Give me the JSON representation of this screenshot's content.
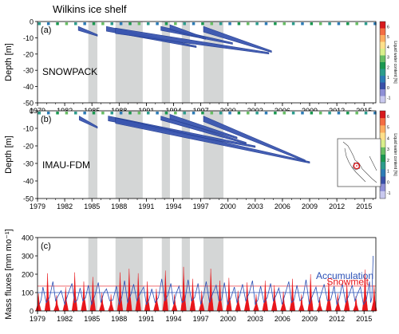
{
  "figure": {
    "title": "Wilkins ice shelf"
  },
  "colorbar": {
    "label": "Liquid water content [%]",
    "ticks": [
      "6",
      "5",
      "4",
      "3",
      "2",
      "1",
      "0",
      "-1"
    ],
    "colors": [
      "#d7191c",
      "#f46d43",
      "#fdae61",
      "#fee08b",
      "#d9ef8b",
      "#66bd63",
      "#1a9850",
      "#2b9c8c",
      "#2c7bb6",
      "#3950a8",
      "#8e8fd6",
      "#c9c9ef"
    ]
  },
  "colors": {
    "shade": "#d4d6d6",
    "blue_fill": "#3a56b0",
    "blue_edge": "#1f3a8f",
    "accumulation": "#2a4fb5",
    "snowmelt": "#e8161b",
    "map_marker": "#e8161b"
  },
  "chart_data": [
    {
      "type": "area",
      "panel_label": "(a)",
      "model_label": "SNOWPACK",
      "ylabel": "Depth [m]",
      "xlim": [
        1979,
        2016.3
      ],
      "ylim": [
        -50,
        0
      ],
      "xticks": [
        1979,
        1982,
        1985,
        1988,
        1991,
        1994,
        1997,
        2000,
        2003,
        2006,
        2009,
        2012,
        2015
      ],
      "yticks": [
        0,
        -10,
        -20,
        -30,
        -40,
        -50
      ],
      "shaded_periods": [
        [
          1984.6,
          1985.6
        ],
        [
          1987.6,
          1990.6
        ],
        [
          1992.7,
          1993.6
        ],
        [
          1994.9,
          1995.8
        ],
        [
          1997.3,
          1999.5
        ]
      ],
      "percolation_bands": [
        {
          "start": 1983.5,
          "end": 1985.6,
          "depth_start": -3,
          "depth_end": -8
        },
        {
          "start": 1986.6,
          "end": 1996.5,
          "depth_start": -3,
          "depth_end": -15
        },
        {
          "start": 1987.6,
          "end": 2004.5,
          "depth_start": -4,
          "depth_end": -19
        },
        {
          "start": 1992.6,
          "end": 2000.5,
          "depth_start": -3,
          "depth_end": -13
        },
        {
          "start": 1993.6,
          "end": 1997.5,
          "depth_start": -2,
          "depth_end": -10
        },
        {
          "start": 1997.3,
          "end": 2004.8,
          "depth_start": -3,
          "depth_end": -18
        }
      ]
    },
    {
      "type": "area",
      "panel_label": "(b)",
      "model_label": "IMAU-FDM",
      "ylabel": "Depth [m]",
      "xlim": [
        1979,
        2016.3
      ],
      "ylim": [
        -50,
        0
      ],
      "xticks": [
        1979,
        1982,
        1985,
        1988,
        1991,
        1994,
        1997,
        2000,
        2003,
        2006,
        2009,
        2012,
        2015
      ],
      "yticks": [
        0,
        -10,
        -20,
        -30,
        -40,
        -50
      ],
      "shaded_periods": [
        [
          1984.6,
          1985.6
        ],
        [
          1987.6,
          1990.6
        ],
        [
          1992.7,
          1993.6
        ],
        [
          1994.9,
          1995.8
        ],
        [
          1997.3,
          1999.5
        ]
      ],
      "percolation_bands": [
        {
          "start": 1983.6,
          "end": 1985.6,
          "depth_start": -3,
          "depth_end": -9
        },
        {
          "start": 1986.8,
          "end": 2003.0,
          "depth_start": -3,
          "depth_end": -20
        },
        {
          "start": 1987.6,
          "end": 2009.0,
          "depth_start": -4,
          "depth_end": -29
        },
        {
          "start": 1992.6,
          "end": 2002.0,
          "depth_start": -3,
          "depth_end": -18
        },
        {
          "start": 1993.6,
          "end": 2001.0,
          "depth_start": -2,
          "depth_end": -15
        },
        {
          "start": 1997.3,
          "end": 2008.5,
          "depth_start": -3,
          "depth_end": -28
        }
      ]
    },
    {
      "type": "line",
      "panel_label": "(c)",
      "ylabel": "Mass fluxes [mm mo⁻¹]",
      "xlim": [
        1979,
        2016.3
      ],
      "ylim": [
        0,
        400
      ],
      "xticks": [
        1979,
        1982,
        1985,
        1988,
        1991,
        1994,
        1997,
        2000,
        2003,
        2006,
        2009,
        2012,
        2015
      ],
      "yticks": [
        0,
        100,
        200,
        300,
        400
      ],
      "shaded_periods": [
        [
          1984.6,
          1985.6
        ],
        [
          1987.6,
          1990.6
        ],
        [
          1992.7,
          1993.6
        ],
        [
          1994.9,
          1995.8
        ],
        [
          1997.3,
          1999.5
        ]
      ],
      "reference_lines": [
        135,
        100
      ],
      "series": [
        {
          "name": "Accumulation",
          "role": "line"
        },
        {
          "name": "Snowmelt",
          "role": "fill"
        }
      ],
      "snowmelt_peaks": [
        {
          "x": 1979.1,
          "y": 95
        },
        {
          "x": 1980.1,
          "y": 205
        },
        {
          "x": 1981.1,
          "y": 85
        },
        {
          "x": 1982.1,
          "y": 130
        },
        {
          "x": 1983.1,
          "y": 210
        },
        {
          "x": 1984.1,
          "y": 160
        },
        {
          "x": 1985.1,
          "y": 185
        },
        {
          "x": 1986.1,
          "y": 100
        },
        {
          "x": 1987.1,
          "y": 90
        },
        {
          "x": 1988.1,
          "y": 210
        },
        {
          "x": 1989.1,
          "y": 230
        },
        {
          "x": 1990.1,
          "y": 205
        },
        {
          "x": 1991.1,
          "y": 160
        },
        {
          "x": 1992.1,
          "y": 120
        },
        {
          "x": 1993.1,
          "y": 220
        },
        {
          "x": 1994.1,
          "y": 90
        },
        {
          "x": 1995.1,
          "y": 240
        },
        {
          "x": 1996.1,
          "y": 175
        },
        {
          "x": 1997.1,
          "y": 110
        },
        {
          "x": 1998.1,
          "y": 230
        },
        {
          "x": 1999.1,
          "y": 165
        },
        {
          "x": 2000.1,
          "y": 180
        },
        {
          "x": 2001.1,
          "y": 110
        },
        {
          "x": 2002.1,
          "y": 155
        },
        {
          "x": 2003.1,
          "y": 90
        },
        {
          "x": 2004.1,
          "y": 165
        },
        {
          "x": 2005.1,
          "y": 140
        },
        {
          "x": 2006.1,
          "y": 105
        },
        {
          "x": 2007.1,
          "y": 175
        },
        {
          "x": 2008.1,
          "y": 90
        },
        {
          "x": 2009.1,
          "y": 200
        },
        {
          "x": 2010.1,
          "y": 75
        },
        {
          "x": 2011.1,
          "y": 165
        },
        {
          "x": 2012.1,
          "y": 95
        },
        {
          "x": 2013.1,
          "y": 150
        },
        {
          "x": 2014.1,
          "y": 80
        },
        {
          "x": 2015.1,
          "y": 225
        },
        {
          "x": 2016.1,
          "y": 140
        }
      ],
      "accumulation_peaks": [
        {
          "x": 1979.6,
          "y": 130
        },
        {
          "x": 1980.7,
          "y": 160
        },
        {
          "x": 1981.6,
          "y": 110
        },
        {
          "x": 1982.8,
          "y": 150
        },
        {
          "x": 1983.7,
          "y": 125
        },
        {
          "x": 1984.6,
          "y": 140
        },
        {
          "x": 1985.7,
          "y": 155
        },
        {
          "x": 1986.6,
          "y": 120
        },
        {
          "x": 1987.7,
          "y": 135
        },
        {
          "x": 1988.6,
          "y": 165
        },
        {
          "x": 1989.6,
          "y": 145
        },
        {
          "x": 1990.7,
          "y": 130
        },
        {
          "x": 1991.6,
          "y": 120
        },
        {
          "x": 1992.7,
          "y": 175
        },
        {
          "x": 1993.7,
          "y": 150
        },
        {
          "x": 1994.6,
          "y": 135
        },
        {
          "x": 1995.6,
          "y": 170
        },
        {
          "x": 1996.7,
          "y": 150
        },
        {
          "x": 1997.6,
          "y": 160
        },
        {
          "x": 1998.7,
          "y": 140
        },
        {
          "x": 1999.6,
          "y": 155
        },
        {
          "x": 2000.7,
          "y": 130
        },
        {
          "x": 2001.6,
          "y": 145
        },
        {
          "x": 2002.7,
          "y": 165
        },
        {
          "x": 2003.6,
          "y": 135
        },
        {
          "x": 2004.7,
          "y": 150
        },
        {
          "x": 2005.6,
          "y": 125
        },
        {
          "x": 2006.7,
          "y": 160
        },
        {
          "x": 2007.6,
          "y": 140
        },
        {
          "x": 2008.6,
          "y": 170
        },
        {
          "x": 2009.7,
          "y": 130
        },
        {
          "x": 2010.6,
          "y": 145
        },
        {
          "x": 2011.7,
          "y": 135
        },
        {
          "x": 2012.6,
          "y": 150
        },
        {
          "x": 2013.7,
          "y": 140
        },
        {
          "x": 2014.6,
          "y": 130
        },
        {
          "x": 2015.6,
          "y": 160
        },
        {
          "x": 2016.0,
          "y": 300
        }
      ]
    }
  ]
}
